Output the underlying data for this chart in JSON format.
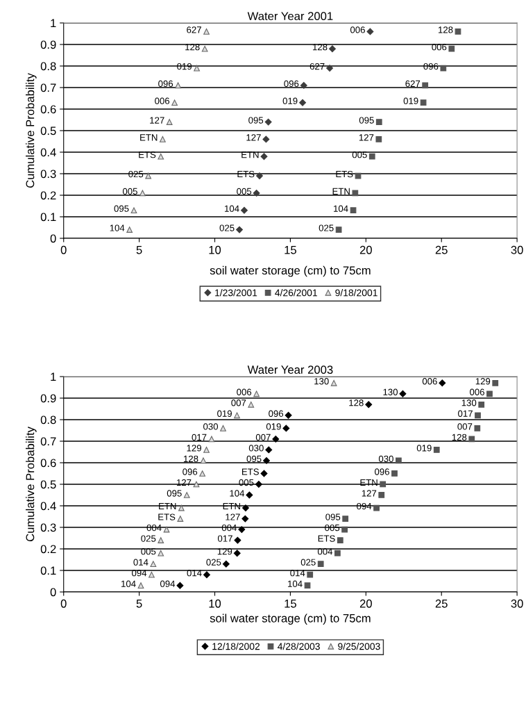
{
  "chart_data": [
    {
      "type": "scatter",
      "title": "Water Year 2001",
      "xlabel": "soil water storage (cm) to 75cm",
      "ylabel": "Cumulative Probability",
      "xlim": [
        0,
        30
      ],
      "xticks": [
        0,
        5,
        10,
        15,
        20,
        25,
        30
      ],
      "ylim": [
        0,
        1
      ],
      "yticks": [
        0,
        0.1,
        0.2,
        0.3,
        0.4,
        0.5,
        0.6,
        0.7,
        0.8,
        0.9,
        1
      ],
      "grid": "y",
      "legend": "bottom",
      "series": [
        {
          "name": "1/23/2001",
          "color": "#3c3c3c",
          "marker": "diamond",
          "x": [
            11.63,
            11.95,
            12.76,
            12.96,
            13.26,
            13.39,
            13.54,
            15.81,
            15.89,
            17.6,
            17.78,
            20.28
          ],
          "values": [
            0.04,
            0.13,
            0.21,
            0.29,
            0.38,
            0.46,
            0.54,
            0.63,
            0.71,
            0.79,
            0.88,
            0.96
          ]
        },
        {
          "name": "4/26/2001",
          "color": "#555555",
          "marker": "square",
          "x": [
            18.2,
            19.16,
            19.29,
            19.48,
            20.41,
            20.85,
            20.87,
            23.8,
            23.92,
            25.12,
            25.67,
            26.09
          ],
          "values": [
            0.04,
            0.13,
            0.21,
            0.29,
            0.38,
            0.46,
            0.54,
            0.63,
            0.71,
            0.79,
            0.88,
            0.96
          ]
        },
        {
          "name": "9/18/2001",
          "color": "#dcdcdc",
          "marker": "triangle",
          "x": [
            4.36,
            4.65,
            5.22,
            5.6,
            6.43,
            6.55,
            7.0,
            7.34,
            7.57,
            8.81,
            9.34,
            9.45
          ],
          "values": [
            0.04,
            0.13,
            0.21,
            0.29,
            0.38,
            0.46,
            0.54,
            0.63,
            0.71,
            0.79,
            0.88,
            0.96
          ]
        }
      ],
      "annotations": [
        {
          "text": "025",
          "x": 11.63,
          "y": 0.04
        },
        {
          "text": "104",
          "x": 11.95,
          "y": 0.13
        },
        {
          "text": "005",
          "x": 12.76,
          "y": 0.21
        },
        {
          "text": "ETS",
          "x": 12.96,
          "y": 0.29
        },
        {
          "text": "ETN",
          "x": 13.26,
          "y": 0.38
        },
        {
          "text": "127",
          "x": 13.39,
          "y": 0.46
        },
        {
          "text": "095",
          "x": 13.54,
          "y": 0.54
        },
        {
          "text": "019",
          "x": 15.81,
          "y": 0.63
        },
        {
          "text": "096",
          "x": 15.89,
          "y": 0.71
        },
        {
          "text": "627",
          "x": 17.6,
          "y": 0.79
        },
        {
          "text": "128",
          "x": 17.78,
          "y": 0.88
        },
        {
          "text": "006",
          "x": 20.28,
          "y": 0.96
        },
        {
          "text": "025",
          "x": 18.2,
          "y": 0.04
        },
        {
          "text": "104",
          "x": 19.16,
          "y": 0.13
        },
        {
          "text": "ETN",
          "x": 19.29,
          "y": 0.21
        },
        {
          "text": "ETS",
          "x": 19.48,
          "y": 0.29
        },
        {
          "text": "005",
          "x": 20.41,
          "y": 0.38
        },
        {
          "text": "127",
          "x": 20.85,
          "y": 0.46
        },
        {
          "text": "095",
          "x": 20.87,
          "y": 0.54
        },
        {
          "text": "019",
          "x": 23.8,
          "y": 0.63
        },
        {
          "text": "627",
          "x": 23.92,
          "y": 0.71
        },
        {
          "text": "096",
          "x": 25.12,
          "y": 0.79
        },
        {
          "text": "006",
          "x": 25.67,
          "y": 0.88
        },
        {
          "text": "128",
          "x": 26.09,
          "y": 0.96
        },
        {
          "text": "104",
          "x": 4.36,
          "y": 0.04
        },
        {
          "text": "095",
          "x": 4.65,
          "y": 0.13
        },
        {
          "text": "005",
          "x": 5.22,
          "y": 0.21
        },
        {
          "text": "025",
          "x": 5.6,
          "y": 0.29
        },
        {
          "text": "ETS",
          "x": 6.43,
          "y": 0.38
        },
        {
          "text": "ETN",
          "x": 6.55,
          "y": 0.46
        },
        {
          "text": "127",
          "x": 7.0,
          "y": 0.54
        },
        {
          "text": "006",
          "x": 7.34,
          "y": 0.63
        },
        {
          "text": "096",
          "x": 7.57,
          "y": 0.71
        },
        {
          "text": "019",
          "x": 8.81,
          "y": 0.79
        },
        {
          "text": "128",
          "x": 9.34,
          "y": 0.88
        },
        {
          "text": "627",
          "x": 9.45,
          "y": 0.96
        }
      ]
    },
    {
      "type": "scatter",
      "title": "Water Year 2003",
      "xlabel": "soil water storage (cm) to 75cm",
      "ylabel": "Cumulative Probability",
      "xlim": [
        0,
        30
      ],
      "xticks": [
        0,
        5,
        10,
        15,
        20,
        25,
        30
      ],
      "ylim": [
        0,
        1
      ],
      "yticks": [
        0,
        0.1,
        0.2,
        0.3,
        0.4,
        0.5,
        0.6,
        0.7,
        0.8,
        0.9,
        1
      ],
      "grid": "y",
      "legend": "bottom",
      "series": [
        {
          "name": "12/18/2002",
          "color": "#000000",
          "marker": "diamond",
          "x": [
            7.7,
            9.47,
            10.75,
            11.48,
            11.51,
            11.78,
            12.01,
            12.04,
            12.29,
            12.91,
            13.26,
            13.42,
            13.57,
            14.03,
            14.72,
            14.87,
            20.18,
            22.44,
            25.05
          ],
          "values": [
            0.03,
            0.08,
            0.13,
            0.18,
            0.24,
            0.29,
            0.34,
            0.39,
            0.45,
            0.5,
            0.55,
            0.61,
            0.66,
            0.71,
            0.76,
            0.82,
            0.87,
            0.92,
            0.97
          ]
        },
        {
          "name": "4/28/2003",
          "color": "#555555",
          "marker": "square",
          "x": [
            16.13,
            16.3,
            17.01,
            18.12,
            18.3,
            18.59,
            18.64,
            20.7,
            21.03,
            21.12,
            21.89,
            22.16,
            24.68,
            27.0,
            27.37,
            27.4,
            27.64,
            28.18,
            28.56
          ],
          "values": [
            0.03,
            0.08,
            0.13,
            0.18,
            0.24,
            0.29,
            0.34,
            0.39,
            0.45,
            0.5,
            0.55,
            0.61,
            0.66,
            0.71,
            0.76,
            0.82,
            0.87,
            0.92,
            0.97
          ]
        },
        {
          "name": "9/25/2003",
          "color": "#dcdcdc",
          "marker": "triangle",
          "x": [
            5.11,
            5.82,
            5.93,
            6.43,
            6.43,
            6.81,
            7.72,
            7.79,
            8.15,
            8.78,
            9.18,
            9.24,
            9.45,
            9.79,
            10.55,
            11.47,
            12.4,
            12.76,
            17.88
          ],
          "values": [
            0.03,
            0.08,
            0.13,
            0.18,
            0.24,
            0.29,
            0.34,
            0.39,
            0.45,
            0.5,
            0.55,
            0.61,
            0.66,
            0.71,
            0.76,
            0.82,
            0.87,
            0.92,
            0.97
          ]
        }
      ],
      "annotations": [
        {
          "text": "094",
          "x": 7.7,
          "y": 0.03
        },
        {
          "text": "014",
          "x": 9.47,
          "y": 0.08
        },
        {
          "text": "025",
          "x": 10.75,
          "y": 0.13
        },
        {
          "text": "129",
          "x": 11.48,
          "y": 0.18
        },
        {
          "text": "017",
          "x": 11.51,
          "y": 0.24
        },
        {
          "text": "004",
          "x": 11.78,
          "y": 0.29
        },
        {
          "text": "127",
          "x": 12.01,
          "y": 0.34
        },
        {
          "text": "ETN",
          "x": 12.04,
          "y": 0.39
        },
        {
          "text": "104",
          "x": 12.29,
          "y": 0.45
        },
        {
          "text": "005",
          "x": 12.91,
          "y": 0.5
        },
        {
          "text": "ETS",
          "x": 13.26,
          "y": 0.55
        },
        {
          "text": "095",
          "x": 13.42,
          "y": 0.61
        },
        {
          "text": "030",
          "x": 13.57,
          "y": 0.66
        },
        {
          "text": "007",
          "x": 14.03,
          "y": 0.71
        },
        {
          "text": "019",
          "x": 14.72,
          "y": 0.76
        },
        {
          "text": "096",
          "x": 14.87,
          "y": 0.82
        },
        {
          "text": "128",
          "x": 20.18,
          "y": 0.87
        },
        {
          "text": "130",
          "x": 22.44,
          "y": 0.92
        },
        {
          "text": "006",
          "x": 25.05,
          "y": 0.97
        },
        {
          "text": "104",
          "x": 16.13,
          "y": 0.03
        },
        {
          "text": "014",
          "x": 16.3,
          "y": 0.08
        },
        {
          "text": "025",
          "x": 17.01,
          "y": 0.13
        },
        {
          "text": "004",
          "x": 18.12,
          "y": 0.18
        },
        {
          "text": "ETS",
          "x": 18.3,
          "y": 0.24
        },
        {
          "text": "005",
          "x": 18.59,
          "y": 0.29
        },
        {
          "text": "095",
          "x": 18.64,
          "y": 0.34
        },
        {
          "text": "094",
          "x": 20.7,
          "y": 0.39
        },
        {
          "text": "127",
          "x": 21.03,
          "y": 0.45
        },
        {
          "text": "ETN",
          "x": 21.12,
          "y": 0.5
        },
        {
          "text": "096",
          "x": 21.89,
          "y": 0.55
        },
        {
          "text": "030",
          "x": 22.16,
          "y": 0.61
        },
        {
          "text": "019",
          "x": 24.68,
          "y": 0.66
        },
        {
          "text": "128",
          "x": 27.0,
          "y": 0.71
        },
        {
          "text": "007",
          "x": 27.37,
          "y": 0.76
        },
        {
          "text": "017",
          "x": 27.4,
          "y": 0.82
        },
        {
          "text": "130",
          "x": 27.64,
          "y": 0.87
        },
        {
          "text": "006",
          "x": 28.18,
          "y": 0.92
        },
        {
          "text": "129",
          "x": 28.56,
          "y": 0.97
        },
        {
          "text": "104",
          "x": 5.11,
          "y": 0.03
        },
        {
          "text": "094",
          "x": 5.82,
          "y": 0.08
        },
        {
          "text": "014",
          "x": 5.93,
          "y": 0.13
        },
        {
          "text": "005",
          "x": 6.43,
          "y": 0.18
        },
        {
          "text": "025",
          "x": 6.43,
          "y": 0.24
        },
        {
          "text": "004",
          "x": 6.81,
          "y": 0.29
        },
        {
          "text": "ETS",
          "x": 7.72,
          "y": 0.34
        },
        {
          "text": "ETN",
          "x": 7.79,
          "y": 0.39
        },
        {
          "text": "095",
          "x": 8.15,
          "y": 0.45
        },
        {
          "text": "127",
          "x": 8.78,
          "y": 0.5
        },
        {
          "text": "096",
          "x": 9.18,
          "y": 0.55
        },
        {
          "text": "128",
          "x": 9.24,
          "y": 0.61
        },
        {
          "text": "129",
          "x": 9.45,
          "y": 0.66
        },
        {
          "text": "017",
          "x": 9.79,
          "y": 0.71
        },
        {
          "text": "030",
          "x": 10.55,
          "y": 0.76
        },
        {
          "text": "019",
          "x": 11.47,
          "y": 0.82
        },
        {
          "text": "007",
          "x": 12.4,
          "y": 0.87
        },
        {
          "text": "006",
          "x": 12.76,
          "y": 0.92
        },
        {
          "text": "130",
          "x": 17.88,
          "y": 0.97
        }
      ]
    }
  ]
}
